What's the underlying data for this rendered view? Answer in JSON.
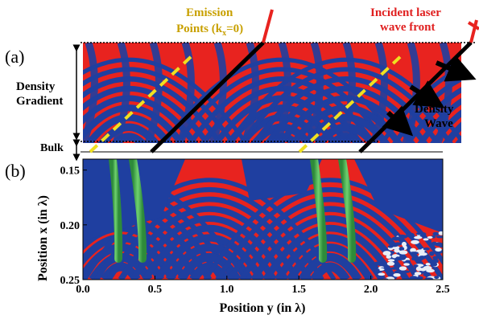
{
  "figure": {
    "panel_a_label": "(a)",
    "panel_b_label": "(b)",
    "emission_label": {
      "line1": "Emission",
      "line2_prefix": "Points (k",
      "line2_sub": "x",
      "line2_suffix": "=0)"
    },
    "incident_label": {
      "line1": "Incident laser",
      "line2": "wave front"
    },
    "density_gradient_label": {
      "line1": "Density",
      "line2": "Gradient"
    },
    "density_wave_label": {
      "line1": "Density",
      "line2": "Wave"
    },
    "bulk_label": "Bulk",
    "colors": {
      "red": "#e8231f",
      "blue": "#1f3fa0",
      "green": "#3cb043",
      "yellow": "#f0e020",
      "emission_text": "#c8a000",
      "incident_text": "#e02020"
    }
  },
  "chart_data": {
    "type": "heatmap",
    "xlabel": "Position y (in λ)",
    "ylabel": "Position x (in λ)",
    "x_ticks": [
      "0.0",
      "0.5",
      "1.0",
      "1.5",
      "2.0",
      "2.5"
    ],
    "y_ticks": [
      "0.15",
      "0.20",
      "0.25"
    ],
    "xlim": [
      0.0,
      2.5
    ],
    "ylim": [
      0.14,
      0.25
    ]
  }
}
